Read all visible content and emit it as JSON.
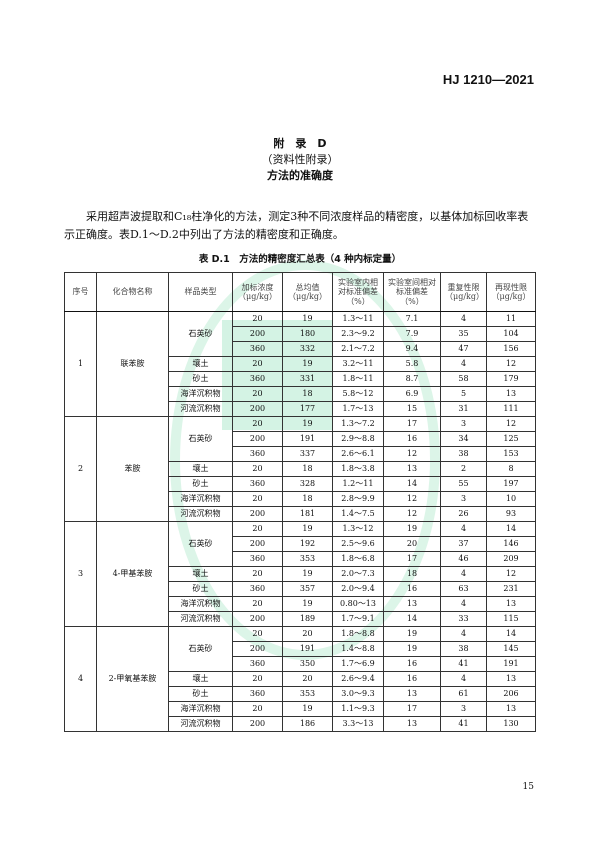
{
  "header": {
    "standard_no": "HJ 1210—2021"
  },
  "appendix": {
    "title": "附　录　D",
    "type": "（资料性附录）",
    "subtitle": "方法的准确度"
  },
  "paragraph": "采用超声波提取和C₁₈柱净化的方法，测定3种不同浓度样品的精密度，以基体加标回收率表示正确度。表D.1～D.2中列出了方法的精密度和正确度。",
  "table": {
    "caption": "表 D.1　方法的精密度汇总表（4 种内标定量）",
    "headers": [
      "序号",
      "化合物名称",
      "样品类型",
      "加标浓度（μg/kg）",
      "总均值（μg/kg）",
      "实验室内相对标准偏差（%）",
      "实验室间相对标准偏差（%）",
      "重复性限（μg/kg）",
      "再现性限（μg/kg）"
    ],
    "groups": [
      {
        "no": "1",
        "name": "联苯胺",
        "rows": [
          [
            "石英砂",
            "20",
            "19",
            "1.3～11",
            "7.1",
            "4",
            "11"
          ],
          [
            "石英砂",
            "200",
            "180",
            "2.3～9.2",
            "7.9",
            "35",
            "104"
          ],
          [
            "石英砂",
            "360",
            "332",
            "2.1～7.2",
            "9.4",
            "47",
            "156"
          ],
          [
            "壤土",
            "20",
            "19",
            "3.2～11",
            "5.8",
            "4",
            "12"
          ],
          [
            "砂土",
            "360",
            "331",
            "1.8～11",
            "8.7",
            "58",
            "179"
          ],
          [
            "海洋沉积物",
            "20",
            "18",
            "5.8～12",
            "6.9",
            "5",
            "13"
          ],
          [
            "河流沉积物",
            "200",
            "177",
            "1.7～13",
            "15",
            "31",
            "111"
          ]
        ]
      },
      {
        "no": "2",
        "name": "苯胺",
        "rows": [
          [
            "石英砂",
            "20",
            "19",
            "1.3～7.2",
            "17",
            "3",
            "12"
          ],
          [
            "石英砂",
            "200",
            "191",
            "2.9～8.8",
            "16",
            "34",
            "125"
          ],
          [
            "石英砂",
            "360",
            "337",
            "2.6～6.1",
            "12",
            "38",
            "153"
          ],
          [
            "壤土",
            "20",
            "18",
            "1.8～3.8",
            "13",
            "2",
            "8"
          ],
          [
            "砂土",
            "360",
            "328",
            "1.2～11",
            "14",
            "55",
            "197"
          ],
          [
            "海洋沉积物",
            "20",
            "18",
            "2.8～9.9",
            "12",
            "3",
            "10"
          ],
          [
            "河流沉积物",
            "200",
            "181",
            "1.4～7.5",
            "12",
            "26",
            "93"
          ]
        ]
      },
      {
        "no": "3",
        "name": "4-甲基苯胺",
        "rows": [
          [
            "石英砂",
            "20",
            "19",
            "1.3～12",
            "19",
            "4",
            "14"
          ],
          [
            "石英砂",
            "200",
            "192",
            "2.5～9.6",
            "20",
            "37",
            "146"
          ],
          [
            "石英砂",
            "360",
            "353",
            "1.8～6.8",
            "17",
            "46",
            "209"
          ],
          [
            "壤土",
            "20",
            "19",
            "2.0～7.3",
            "18",
            "4",
            "12"
          ],
          [
            "砂土",
            "360",
            "357",
            "2.0～9.4",
            "16",
            "63",
            "231"
          ],
          [
            "海洋沉积物",
            "20",
            "19",
            "0.80～13",
            "13",
            "4",
            "13"
          ],
          [
            "河流沉积物",
            "200",
            "189",
            "1.7～9.1",
            "14",
            "33",
            "115"
          ]
        ]
      },
      {
        "no": "4",
        "name": "2-甲氧基苯胺",
        "rows": [
          [
            "石英砂",
            "20",
            "20",
            "1.8～8.8",
            "19",
            "4",
            "14"
          ],
          [
            "石英砂",
            "200",
            "191",
            "1.4～8.8",
            "19",
            "38",
            "145"
          ],
          [
            "石英砂",
            "360",
            "350",
            "1.7～6.9",
            "16",
            "41",
            "191"
          ],
          [
            "壤土",
            "20",
            "20",
            "2.6～9.4",
            "16",
            "4",
            "13"
          ],
          [
            "砂土",
            "360",
            "353",
            "3.0～9.3",
            "13",
            "61",
            "206"
          ],
          [
            "海洋沉积物",
            "20",
            "19",
            "1.1～9.3",
            "17",
            "3",
            "13"
          ],
          [
            "河流沉积物",
            "200",
            "186",
            "3.3～13",
            "13",
            "41",
            "130"
          ]
        ]
      }
    ]
  },
  "page_number": "15"
}
